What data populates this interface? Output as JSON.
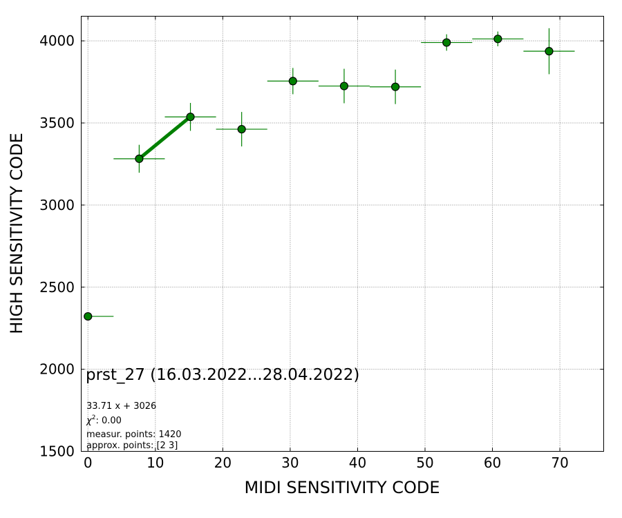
{
  "chart_data": {
    "type": "scatter",
    "xlabel": "MIDI SENSITIVITY CODE",
    "ylabel": "HIGH SENSITIVITY CODE",
    "xlim": [
      -1,
      76.5
    ],
    "ylim": [
      1500,
      4150
    ],
    "xticks": [
      0,
      10,
      20,
      30,
      40,
      50,
      60,
      70
    ],
    "yticks": [
      1500,
      2000,
      2500,
      3000,
      3500,
      4000
    ],
    "grid": true,
    "colors": {
      "marker_fill": "#008000",
      "marker_edge": "#000000",
      "errorbar": "#008000",
      "fit_line": "#008000",
      "grid": "#808080"
    },
    "points": [
      {
        "x": 0.0,
        "y": 2322,
        "xerr_lo": 0.0,
        "xerr_hi": 3.8,
        "yerr": 0
      },
      {
        "x": 7.6,
        "y": 3282,
        "xerr_lo": 3.8,
        "xerr_hi": 3.8,
        "yerr": 85
      },
      {
        "x": 15.2,
        "y": 3537,
        "xerr_lo": 3.8,
        "xerr_hi": 3.8,
        "yerr": 85
      },
      {
        "x": 22.8,
        "y": 3462,
        "xerr_lo": 3.8,
        "xerr_hi": 3.8,
        "yerr": 105
      },
      {
        "x": 30.4,
        "y": 3755,
        "xerr_lo": 3.8,
        "xerr_hi": 3.8,
        "yerr": 80
      },
      {
        "x": 38.0,
        "y": 3725,
        "xerr_lo": 3.8,
        "xerr_hi": 3.8,
        "yerr": 105
      },
      {
        "x": 45.6,
        "y": 3720,
        "xerr_lo": 3.8,
        "xerr_hi": 3.8,
        "yerr": 105
      },
      {
        "x": 53.2,
        "y": 3990,
        "xerr_lo": 3.8,
        "xerr_hi": 3.8,
        "yerr": 50
      },
      {
        "x": 60.8,
        "y": 4012,
        "xerr_lo": 3.8,
        "xerr_hi": 3.8,
        "yerr": 45
      },
      {
        "x": 68.4,
        "y": 3937,
        "xerr_lo": 3.8,
        "xerr_hi": 3.8,
        "yerr": 140
      }
    ],
    "fit": {
      "slope": 33.71,
      "intercept": 3026,
      "x_range": [
        7.6,
        15.2
      ]
    },
    "annotations": {
      "title": "prst_27 (16.03.2022...28.04.2022)",
      "equation": "33.71 x + 3026",
      "chi2_prefix": "χ",
      "chi2_sup": "2",
      "chi2_suffix": ": 0.00",
      "points": "measur. points: 1420",
      "approx": "approx. points: [2 3]"
    }
  }
}
